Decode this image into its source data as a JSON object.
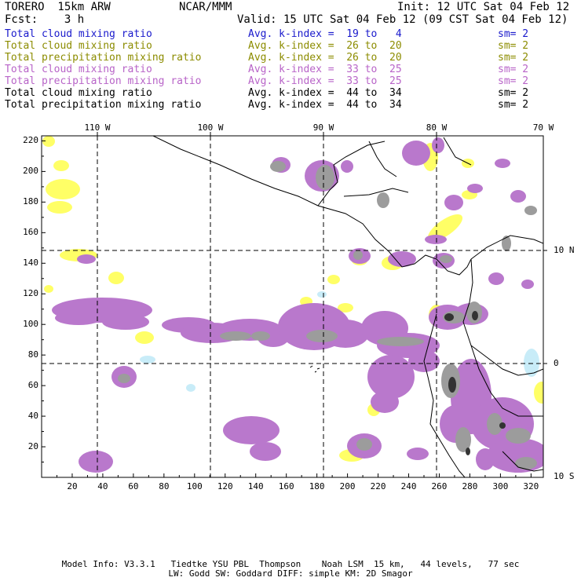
{
  "header": {
    "title": "TORERO  15km ARW",
    "center": "NCAR/MMM",
    "init": "Init: 12 UTC Sat 04 Feb 12",
    "fcst": "Fcst:    3 h",
    "valid": "Valid: 15 UTC Sat 04 Feb 12 (09 CST Sat 04 Feb 12)"
  },
  "legend": [
    {
      "field": "Total cloud mixing ratio",
      "k": "Avg. k-index =  19 to   4",
      "sm": "sm= 2",
      "color": "#1a1acc"
    },
    {
      "field": "Total cloud mixing ratio",
      "k": "Avg. k-index =  26 to  20",
      "sm": "sm= 2",
      "color": "#8c8c00"
    },
    {
      "field": "Total precipitation mixing ratio",
      "k": "Avg. k-index =  26 to  20",
      "sm": "sm= 2",
      "color": "#8c8c00"
    },
    {
      "field": "Total cloud mixing ratio",
      "k": "Avg. k-index =  33 to  25",
      "sm": "sm= 2",
      "color": "#b864c8"
    },
    {
      "field": "Total precipitation mixing ratio",
      "k": "Avg. k-index =  33 to  25",
      "sm": "sm= 2",
      "color": "#b864c8"
    },
    {
      "field": "Total cloud mixing ratio",
      "k": "Avg. k-index =  44 to  34",
      "sm": "sm= 2",
      "color": "#000000"
    },
    {
      "field": "Total precipitation mixing ratio",
      "k": "Avg. k-index =  44 to  34",
      "sm": "sm= 2",
      "color": "#000000"
    }
  ],
  "axes": {
    "lon_labels": [
      "110 W",
      "100 W",
      "90 W",
      "80 W",
      "70 W"
    ],
    "lat_labels": [
      "10 N",
      "0",
      "10 S"
    ],
    "x_ticks": [
      "20",
      "40",
      "60",
      "80",
      "100",
      "120",
      "140",
      "160",
      "180",
      "200",
      "220",
      "240",
      "260",
      "280",
      "300",
      "320"
    ],
    "y_ticks": [
      "220",
      "200",
      "180",
      "160",
      "140",
      "120",
      "100",
      "80",
      "60",
      "40",
      "20"
    ]
  },
  "footer": {
    "line1": "Model Info: V3.3.1   Tiedtke YSU PBL  Thompson    Noah LSM  15 km,   44 levels,   77 sec",
    "line2": "LW: Godd SW: Goddard DIFF: simple KM: 2D Smagor"
  },
  "colors": {
    "yellow": "#ffff66",
    "purple": "#b978cc",
    "gray": "#9c9c9c",
    "dark": "#333333",
    "lightblue": "#c8ecf8"
  }
}
